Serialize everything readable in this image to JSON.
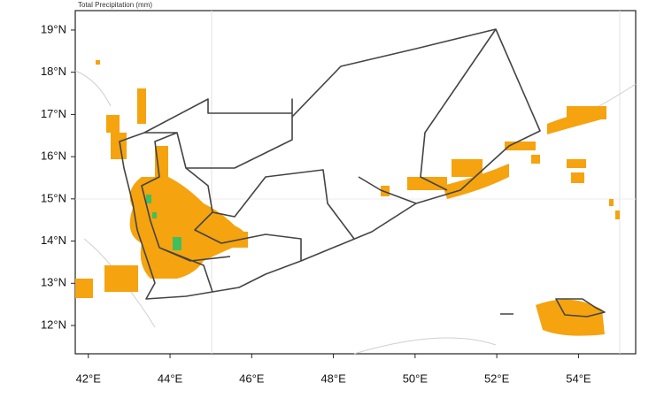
{
  "map": {
    "title": "Total Precipitation   (mm)",
    "xlim": [
      41.68,
      55.4
    ],
    "ylim": [
      11.33,
      19.46
    ],
    "xticks": [
      {
        "value": 42,
        "label": "42°E"
      },
      {
        "value": 44,
        "label": "44°E"
      },
      {
        "value": 46,
        "label": "46°E"
      },
      {
        "value": 48,
        "label": "48°E"
      },
      {
        "value": 50,
        "label": "50°E"
      },
      {
        "value": 52,
        "label": "52°E"
      },
      {
        "value": 54,
        "label": "54°E"
      }
    ],
    "yticks": [
      {
        "value": 12,
        "label": "12°N"
      },
      {
        "value": 13,
        "label": "13°N"
      },
      {
        "value": 14,
        "label": "14°N"
      },
      {
        "value": 15,
        "label": "15°N"
      },
      {
        "value": 16,
        "label": "16°N"
      },
      {
        "value": 17,
        "label": "17°N"
      },
      {
        "value": 18,
        "label": "18°N"
      },
      {
        "value": 19,
        "label": "19°N"
      }
    ]
  }
}
